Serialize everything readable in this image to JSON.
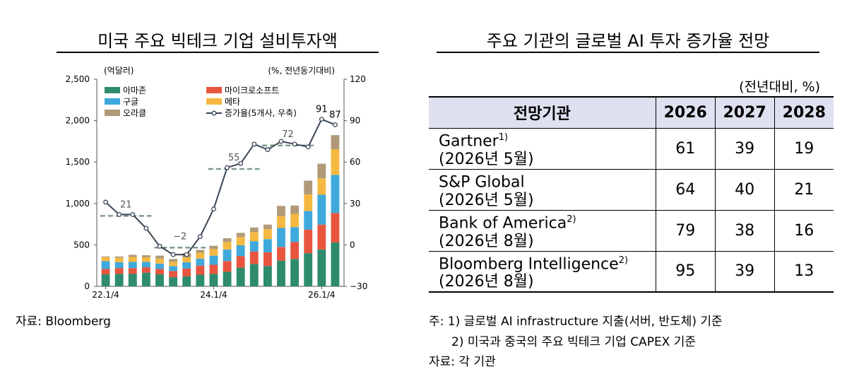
{
  "left_panel": {
    "title": "미국 주요 빅테크 기업 설비투자액",
    "source": "자료: Bloomberg"
  },
  "right_panel": {
    "title": "주요 기관의 글로벌 AI 투자 증가율 전망",
    "unit": "(전년대비, %)",
    "table": {
      "headers": [
        "전망기관",
        "2026",
        "2027",
        "2028"
      ],
      "rows": [
        {
          "name": "Gartner",
          "note": "1)",
          "date": "(2026년 5월)",
          "values": [
            "61",
            "39",
            "19"
          ]
        },
        {
          "name": "S&P Global",
          "note": "",
          "date": "(2026년 5월)",
          "values": [
            "64",
            "40",
            "21"
          ]
        },
        {
          "name": "Bank of America",
          "note": "2)",
          "date": "(2026년 8월)",
          "values": [
            "79",
            "38",
            "16"
          ]
        },
        {
          "name": "Bloomberg Intelligence",
          "note": "2)",
          "date": "(2026년 8월)",
          "values": [
            "95",
            "39",
            "13"
          ]
        }
      ]
    },
    "notes": [
      "주: 1) 글로벌 AI infrastructure 지출(서버, 반도체) 기준",
      "2) 미국과 중국의 주요 빅테크 기업 CAPEX 기준"
    ],
    "source": "자료: 각 기관"
  },
  "chart_data": {
    "type": "bar",
    "stacked": true,
    "left_axis_label": "(억달러)",
    "right_axis_label": "(%, 전년동기대비)",
    "ylim_left": [
      0,
      2500
    ],
    "yticks_left": [
      0,
      500,
      1000,
      1500,
      2000,
      2500
    ],
    "ylim_right": [
      -30,
      120
    ],
    "yticks_right": [
      -30,
      0,
      30,
      60,
      90,
      120
    ],
    "xtick_labels": [
      "22.1/4",
      "24.1/4",
      "26.1/4"
    ],
    "xtick_index": [
      0,
      8,
      16
    ],
    "n_quarters": 18,
    "legend_position": "top-left",
    "colors": {
      "amazon": "#2e8b6e",
      "microsoft": "#e8553e",
      "google": "#3fa9dc",
      "meta": "#f5b942",
      "oracle": "#b09a78",
      "growth": "#3b4657",
      "average": "#7f9c8f"
    },
    "series": [
      {
        "name": "아마존",
        "key": "amazon",
        "values": [
          145,
          150,
          150,
          165,
          145,
          110,
          120,
          140,
          150,
          175,
          225,
          270,
          245,
          310,
          330,
          400,
          445,
          530
        ]
      },
      {
        "name": "마이크로소프트",
        "key": "microsoft",
        "values": [
          65,
          70,
          70,
          65,
          65,
          75,
          95,
          110,
          110,
          130,
          140,
          150,
          165,
          165,
          205,
          285,
          300,
          355
        ]
      },
      {
        "name": "구글",
        "key": "google",
        "values": [
          95,
          70,
          75,
          65,
          65,
          60,
          75,
          85,
          110,
          140,
          130,
          125,
          160,
          230,
          180,
          225,
          360,
          460
        ]
      },
      {
        "name": "메타",
        "key": "meta",
        "values": [
          45,
          55,
          60,
          55,
          60,
          50,
          60,
          70,
          80,
          90,
          100,
          110,
          120,
          140,
          160,
          200,
          200,
          310
        ]
      },
      {
        "name": "오라클",
        "key": "oracle",
        "values": [
          10,
          15,
          25,
          25,
          35,
          35,
          50,
          35,
          40,
          45,
          50,
          55,
          55,
          125,
          100,
          165,
          175,
          170
        ]
      }
    ],
    "growth_series": {
      "name": "증가율(5개사, 우축)",
      "values": [
        31,
        22,
        22,
        12,
        -1,
        -7,
        -7,
        6,
        26,
        56,
        59,
        73,
        69,
        75,
        73,
        71,
        91,
        87
      ],
      "labels": [
        {
          "index": 16,
          "text": "91"
        },
        {
          "index": 17,
          "text": "87"
        }
      ]
    },
    "averages": [
      {
        "from": 0,
        "to": 3,
        "value": 21,
        "label": "21"
      },
      {
        "from": 4,
        "to": 7,
        "value": -2,
        "label": "−2"
      },
      {
        "from": 8,
        "to": 11,
        "value": 55,
        "label": "55"
      },
      {
        "from": 12,
        "to": 15,
        "value": 72,
        "label": "72"
      }
    ]
  }
}
